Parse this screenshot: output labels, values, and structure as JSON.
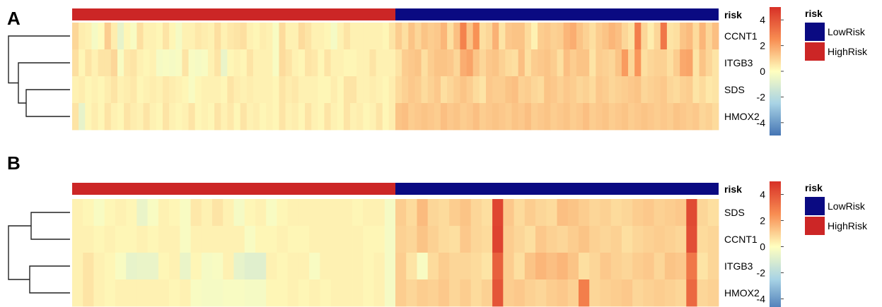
{
  "figure": {
    "panels": [
      {
        "id": "A",
        "label": "A",
        "annotation_title": "risk",
        "annotation_groups": [
          {
            "name": "HighRisk",
            "color": "#CC2626"
          },
          {
            "name": "LowRisk",
            "color": "#0A0A82"
          }
        ],
        "legend_title": "risk",
        "legend_entries": [
          "LowRisk",
          "HighRisk"
        ],
        "colorbar_ticks": [
          "4",
          "2",
          "0",
          "-2",
          "-4"
        ]
      },
      {
        "id": "B",
        "label": "B",
        "annotation_title": "risk",
        "annotation_groups": [
          {
            "name": "HighRisk",
            "color": "#CC2626"
          },
          {
            "name": "LowRisk",
            "color": "#0A0A82"
          }
        ],
        "legend_title": "risk",
        "legend_entries": [
          "LowRisk",
          "HighRisk"
        ],
        "colorbar_ticks": [
          "4",
          "2",
          "0",
          "-2",
          "-4"
        ]
      }
    ]
  },
  "chart_data": [
    {
      "type": "heatmap",
      "panel": "A",
      "rows": [
        "CCNT1",
        "ITGB3",
        "SDS",
        "HMOX2"
      ],
      "samples_total": 100,
      "highrisk_samples": 50,
      "lowrisk_samples": 50,
      "value_range": [
        -5,
        5
      ],
      "colormap": [
        "#4575B4",
        "#FFFFBF",
        "#D73027"
      ],
      "row_dendrogram": "((CCNT1,(ITGB3,(SDS,HMOX2))))",
      "values": [
        [
          0.9,
          0.4,
          0.3,
          -0.3,
          0.1,
          1.1,
          0.4,
          -0.7,
          0.2,
          -0.2,
          0.7,
          0.3,
          0.3,
          0.2,
          0.6,
          0.2,
          -0.3,
          0.3,
          0.3,
          0.5,
          0.4,
          0.3,
          0.7,
          0.3,
          0.5,
          0.6,
          0.7,
          0.3,
          0.2,
          0.4,
          0.3,
          -0.2,
          0.8,
          0.3,
          0.3,
          0.8,
          0.6,
          0.3,
          0.3,
          0.2,
          -0.3,
          0.3,
          0.6,
          0.3,
          0.3,
          0.3,
          0.3,
          0.3,
          0.2,
          0.6,
          1.1,
          0.7,
          1.3,
          0.9,
          1.3,
          1.1,
          1.2,
          1.6,
          0.7,
          1.4,
          2.8,
          1.3,
          2.4,
          0.7,
          0.9,
          1.7,
          0.6,
          1.2,
          1.3,
          1.3,
          0.8,
          0.3,
          1.1,
          1.2,
          1.0,
          1.1,
          1.6,
          1.8,
          1.3,
          1.0,
          0.7,
          1.1,
          1.3,
          1.6,
          1.4,
          0.9,
          0.6,
          2.9,
          0.9,
          0.4,
          0.9,
          3.1,
          0.6,
          0.7,
          1.3,
          1.5,
          0.8,
          1.6,
          0.9,
          1.4
        ],
        [
          0.7,
          0.2,
          0.6,
          0.3,
          0.6,
          0.6,
          0.9,
          -0.2,
          0.5,
          0.6,
          0.3,
          0.2,
          0.3,
          -0.3,
          -0.2,
          -0.3,
          -0.2,
          0.6,
          -0.2,
          -0.3,
          -0.2,
          0.3,
          0.6,
          -0.6,
          0.2,
          0.3,
          0.2,
          0.6,
          0.3,
          0.3,
          0.3,
          -0.2,
          0.8,
          0.6,
          0.3,
          0.2,
          0.6,
          0.5,
          0.2,
          0.6,
          0.3,
          0.3,
          0.2,
          0.2,
          0.3,
          0.3,
          0.6,
          0.3,
          0.3,
          0.3,
          0.6,
          1.1,
          1.2,
          1.3,
          0.7,
          1.1,
          1.3,
          1.3,
          1.2,
          0.9,
          1.8,
          2.0,
          1.3,
          0.9,
          1.2,
          1.3,
          1.0,
          0.8,
          0.7,
          1.4,
          0.7,
          1.1,
          1.2,
          1.3,
          1.1,
          0.7,
          1.4,
          1.1,
          1.3,
          1.3,
          0.6,
          1.1,
          1.0,
          0.9,
          1.3,
          2.2,
          0.9,
          2.3,
          0.7,
          0.9,
          1.0,
          1.0,
          0.7,
          1.1,
          1.9,
          2.0,
          0.6,
          1.3,
          0.9,
          0.6
        ],
        [
          0.3,
          0.4,
          0.2,
          0.3,
          0.2,
          0.4,
          0.6,
          0.3,
          0.4,
          0.5,
          0.2,
          0.3,
          0.4,
          0.3,
          0.5,
          0.4,
          0.3,
          0.2,
          -0.2,
          0.2,
          0.3,
          0.3,
          0.3,
          0.2,
          0.6,
          0.4,
          0.3,
          0.4,
          0.3,
          0.3,
          0.3,
          0.2,
          0.6,
          0.4,
          0.5,
          0.3,
          0.3,
          0.3,
          0.2,
          0.2,
          0.4,
          0.2,
          0.6,
          0.6,
          0.3,
          0.3,
          0.4,
          0.3,
          0.2,
          0.4,
          0.8,
          1.0,
          1.2,
          1.1,
          0.8,
          1.0,
          1.2,
          0.7,
          0.9,
          1.1,
          1.3,
          1.1,
          0.8,
          0.6,
          1.2,
          1.1,
          1.1,
          1.3,
          1.4,
          1.0,
          1.1,
          0.9,
          0.8,
          1.3,
          1.2,
          1.0,
          1.2,
          1.1,
          0.9,
          1.0,
          0.8,
          1.2,
          1.1,
          0.9,
          1.0,
          1.1,
          1.2,
          1.3,
          0.9,
          1.0,
          1.1,
          1.2,
          0.9,
          0.8,
          1.0,
          1.1,
          0.6,
          0.8,
          0.5,
          0.6
        ],
        [
          0.6,
          -0.7,
          0.2,
          0.4,
          0.2,
          0.6,
          0.3,
          0.2,
          0.6,
          0.4,
          0.3,
          0.6,
          0.3,
          0.2,
          0.6,
          0.3,
          0.2,
          0.3,
          0.6,
          0.2,
          0.3,
          0.2,
          0.6,
          0.3,
          0.5,
          0.2,
          0.6,
          0.3,
          0.4,
          0.2,
          0.3,
          0.2,
          0.6,
          0.3,
          0.4,
          0.2,
          0.6,
          0.3,
          0.2,
          0.6,
          0.3,
          0.2,
          0.6,
          0.3,
          0.4,
          0.2,
          0.3,
          0.6,
          0.2,
          0.4,
          1.3,
          1.4,
          1.1,
          1.2,
          1.3,
          1.2,
          1.1,
          1.4,
          1.2,
          1.3,
          1.1,
          1.2,
          1.4,
          1.1,
          1.2,
          1.3,
          1.2,
          1.1,
          1.3,
          1.2,
          1.4,
          1.1,
          1.2,
          1.3,
          1.1,
          1.2,
          1.3,
          1.1,
          1.2,
          1.4,
          1.1,
          1.2,
          1.3,
          1.1,
          1.2,
          1.3,
          1.1,
          1.2,
          1.3,
          1.2,
          1.1,
          1.2,
          1.1,
          1.3,
          1.2,
          1.1,
          1.2,
          0.9,
          1.0,
          0.8
        ]
      ]
    },
    {
      "type": "heatmap",
      "panel": "B",
      "rows": [
        "SDS",
        "CCNT1",
        "ITGB3",
        "HMOX2"
      ],
      "samples_total": 60,
      "highrisk_samples": 30,
      "lowrisk_samples": 30,
      "value_range": [
        -5,
        5
      ],
      "colormap": [
        "#4575B4",
        "#FFFFBF",
        "#D73027"
      ],
      "row_dendrogram": "((SDS,CCNT1),(ITGB3,HMOX2))",
      "values": [
        [
          0.3,
          0.2,
          -0.2,
          0.2,
          0.3,
          0.2,
          -0.6,
          -0.2,
          0.3,
          0.2,
          -0.2,
          0.5,
          0.3,
          0.6,
          0.3,
          -0.3,
          0.2,
          0.3,
          -0.2,
          0.2,
          0.3,
          0.3,
          0.3,
          0.3,
          0.3,
          0.3,
          0.2,
          0.3,
          0.3,
          -0.3,
          1.1,
          0.8,
          1.5,
          0.9,
          0.8,
          1.1,
          1.3,
          0.9,
          0.7,
          4.4,
          1.2,
          0.8,
          1.1,
          0.9,
          0.8,
          1.4,
          1.3,
          1.1,
          0.9,
          1.0,
          0.8,
          0.9,
          1.1,
          1.2,
          1.0,
          1.1,
          1.2,
          4.3,
          0.9,
          0.7
        ],
        [
          0.3,
          0.3,
          0.2,
          0.3,
          0.2,
          0.2,
          0.3,
          0.2,
          0.3,
          0.3,
          -0.2,
          0.3,
          0.3,
          0.3,
          0.3,
          0.3,
          -0.2,
          0.2,
          0.2,
          0.3,
          0.2,
          0.2,
          0.3,
          0.3,
          0.3,
          0.3,
          0.3,
          0.2,
          0.2,
          -0.3,
          1.0,
          0.9,
          1.3,
          1.0,
          0.8,
          0.7,
          1.2,
          0.9,
          0.8,
          4.5,
          1.1,
          0.9,
          0.7,
          1.2,
          1.0,
          0.9,
          1.1,
          1.3,
          1.0,
          0.9,
          1.0,
          0.7,
          0.9,
          1.0,
          1.1,
          1.0,
          0.9,
          4.2,
          0.8,
          0.9
        ],
        [
          0.3,
          0.6,
          0.3,
          0.2,
          -0.2,
          -0.7,
          -0.6,
          -0.6,
          0.2,
          0.3,
          -0.6,
          0.2,
          -0.3,
          -0.2,
          0.3,
          -0.7,
          -0.9,
          -0.9,
          0.3,
          0.2,
          0.3,
          0.3,
          -0.2,
          0.3,
          0.3,
          0.3,
          0.3,
          0.2,
          0.3,
          -0.3,
          1.1,
          0.6,
          -0.2,
          0.8,
          1.1,
          0.9,
          0.9,
          0.8,
          0.6,
          3.7,
          1.1,
          0.7,
          1.3,
          1.6,
          1.4,
          1.6,
          1.3,
          0.7,
          0.9,
          1.2,
          1.0,
          0.9,
          1.1,
          1.2,
          0.9,
          1.3,
          1.2,
          3.1,
          0.6,
          0.9
        ],
        [
          0.3,
          0.6,
          0.3,
          0.2,
          0.3,
          0.3,
          0.3,
          0.3,
          0.3,
          0.2,
          0.3,
          -0.2,
          -0.3,
          -0.3,
          -0.2,
          -0.2,
          -0.3,
          -0.3,
          0.2,
          0.2,
          0.3,
          0.2,
          0.3,
          0.2,
          0.3,
          0.3,
          0.3,
          0.2,
          0.3,
          -0.3,
          1.1,
          0.9,
          1.1,
          1.0,
          1.2,
          0.9,
          1.1,
          0.8,
          1.0,
          4.0,
          1.1,
          1.2,
          1.0,
          0.9,
          1.1,
          1.2,
          1.0,
          2.9,
          0.9,
          1.0,
          1.1,
          1.2,
          0.9,
          1.0,
          1.1,
          1.0,
          0.9,
          3.5,
          0.9,
          1.0
        ]
      ]
    }
  ]
}
